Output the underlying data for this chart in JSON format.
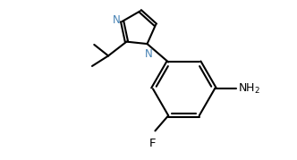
{
  "background_color": "#ffffff",
  "line_color": "#000000",
  "label_color_N": "#4682b4",
  "label_color_F": "#000000",
  "label_color_NH2": "#000000",
  "line_width": 1.5,
  "font_size_atom": 8.5,
  "figsize": [
    3.32,
    1.79
  ],
  "dpi": 100,
  "xlim": [
    0.0,
    10.0
  ],
  "ylim": [
    0.0,
    5.4
  ]
}
